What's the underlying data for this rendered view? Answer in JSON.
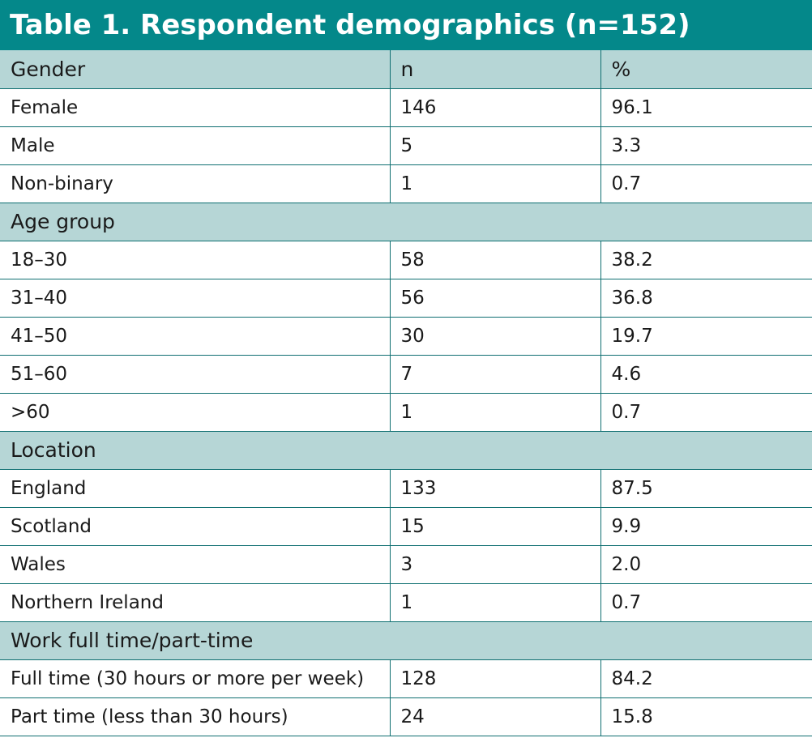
{
  "title": "Table 1. Respondent demographics (n=152)",
  "header": {
    "label": "Gender",
    "n": "n",
    "pct": "%"
  },
  "gender": [
    {
      "label": "Female",
      "n": "146",
      "pct": "96.1"
    },
    {
      "label": "Male",
      "n": "5",
      "pct": "3.3"
    },
    {
      "label": "Non-binary",
      "n": "1",
      "pct": "0.7"
    }
  ],
  "age": {
    "label": "Age group",
    "rows": [
      {
        "label": "18–30",
        "n": "58",
        "pct": "38.2"
      },
      {
        "label": "31–40",
        "n": "56",
        "pct": "36.8"
      },
      {
        "label": "41–50",
        "n": "30",
        "pct": "19.7"
      },
      {
        "label": "51–60",
        "n": "7",
        "pct": "4.6"
      },
      {
        "label": ">60",
        "n": "1",
        "pct": "0.7"
      }
    ]
  },
  "location": {
    "label": "Location",
    "rows": [
      {
        "label": "England",
        "n": "133",
        "pct": "87.5"
      },
      {
        "label": "Scotland",
        "n": "15",
        "pct": "9.9"
      },
      {
        "label": "Wales",
        "n": "3",
        "pct": "2.0"
      },
      {
        "label": "Northern Ireland",
        "n": "1",
        "pct": "0.7"
      }
    ]
  },
  "work": {
    "label": "Work full time/part-time",
    "rows": [
      {
        "label": "Full time (30 hours or more per week)",
        "n": "128",
        "pct": "84.2"
      },
      {
        "label": "Part time (less than 30 hours)",
        "n": "24",
        "pct": "15.8"
      }
    ]
  },
  "colors": {
    "title_bg": "#04888a",
    "group_bg": "#b6d6d6",
    "border": "#0f6f71"
  }
}
